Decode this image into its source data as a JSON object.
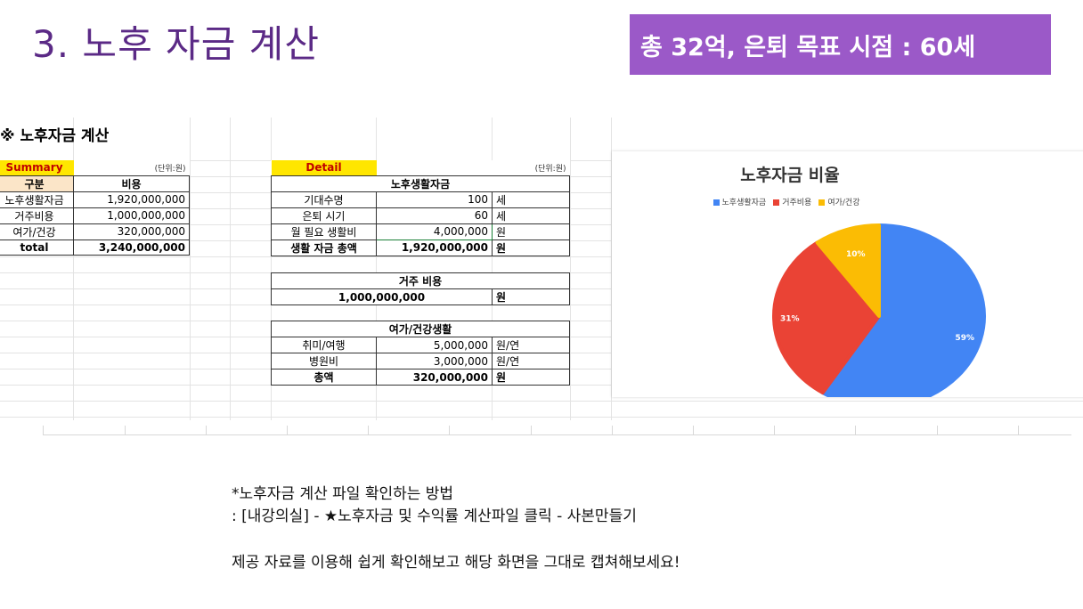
{
  "slide": {
    "title": "3. 노후 자금 계산",
    "badge": "총 32억, 은퇴 목표 시점 : 60세"
  },
  "sheet": {
    "title": "※ 노후자금 계산",
    "summary": {
      "header": "Summary",
      "unit": "(단위:원)",
      "col_headers": [
        "구분",
        "비용"
      ],
      "rows": [
        {
          "label": "노후생활자금",
          "value": "1,920,000,000"
        },
        {
          "label": "거주비용",
          "value": "1,000,000,000"
        },
        {
          "label": "여가/건강",
          "value": "320,000,000"
        }
      ],
      "total_label": "total",
      "total_value": "3,240,000,000"
    },
    "detail": {
      "header": "Detail",
      "unit": "(단위:원)",
      "living": {
        "title": "노후생활자금",
        "rows": [
          {
            "label": "기대수명",
            "value": "100",
            "unit": "세"
          },
          {
            "label": "은퇴 시기",
            "value": "60",
            "unit": "세"
          },
          {
            "label": "월 필요 생활비",
            "value": "4,000,000",
            "unit": "원"
          }
        ],
        "total_label": "생활 자금 총액",
        "total_value": "1,920,000,000",
        "total_unit": "원"
      },
      "housing": {
        "title": "거주 비용",
        "value": "1,000,000,000",
        "unit": "원"
      },
      "leisure": {
        "title": "여가/건강생활",
        "rows": [
          {
            "label": "취미/여행",
            "value": "5,000,000",
            "unit": "원/연"
          },
          {
            "label": "병원비",
            "value": "3,000,000",
            "unit": "원/연"
          }
        ],
        "total_label": "총액",
        "total_value": "320,000,000",
        "total_unit": "원"
      }
    }
  },
  "chart_data": {
    "type": "pie",
    "title": "노후자금 비율",
    "legend_position": "top",
    "categories": [
      "노후생활자금",
      "거주비용",
      "여가/건강"
    ],
    "values": [
      59,
      31,
      10
    ],
    "labels": [
      "59%",
      "31%",
      "10%"
    ],
    "colors": [
      "#4285f4",
      "#ea4335",
      "#fbbc04"
    ]
  },
  "notes": {
    "line1": "*노후자금 계산 파일 확인하는 방법",
    "line2": ": [내강의실] - ★노후자금 및 수익률 계산파일 클릭 - 사본만들기",
    "line3": "제공 자료를 이용해 쉽게 확인해보고 해당 화면을 그대로 캡쳐해보세요!"
  }
}
